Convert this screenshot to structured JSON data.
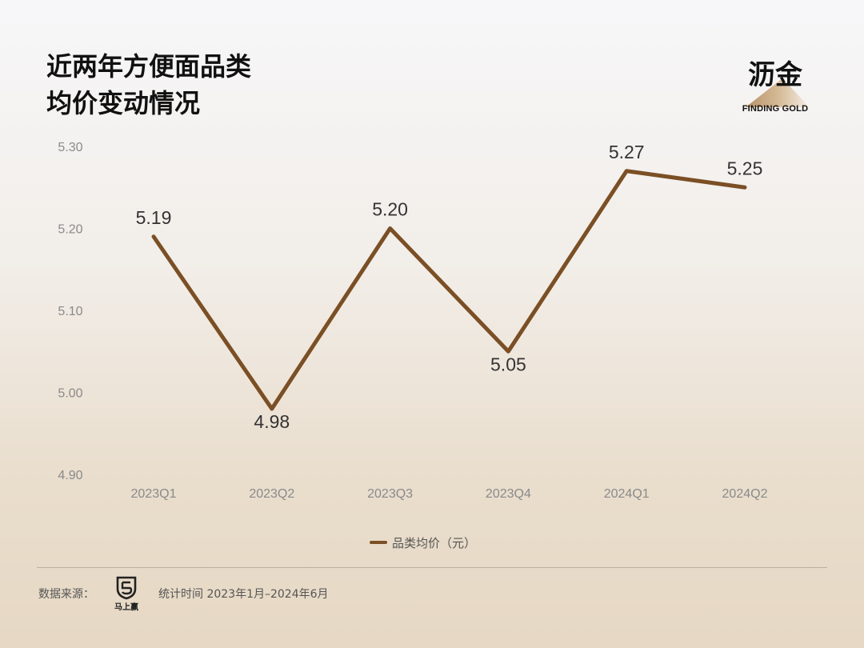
{
  "title": {
    "line1": "近两年方便面品类",
    "line2": "均价变动情况"
  },
  "logo": {
    "name_cn": "沥金",
    "name_en": "FINDING GOLD",
    "icon": "mountain-icon",
    "colors": [
      "#c8a57a",
      "#f3ede5"
    ]
  },
  "source": {
    "label": "数据来源：",
    "logo_text": "马上赢",
    "logo_icon": "shield-icon",
    "period": "统计时间 2023年1月–2024年6月"
  },
  "colors": {
    "line": "#7b4f25"
  },
  "chart_data": {
    "type": "line",
    "categories": [
      "2023Q1",
      "2023Q2",
      "2023Q3",
      "2023Q4",
      "2024Q1",
      "2024Q2"
    ],
    "series": [
      {
        "name": "品类均价（元）",
        "values": [
          5.19,
          4.98,
          5.2,
          5.05,
          5.27,
          5.25
        ]
      }
    ],
    "data_labels": [
      "5.19",
      "4.98",
      "5.20",
      "5.05",
      "5.27",
      "5.25"
    ],
    "y_ticks": [
      "5.30",
      "5.20",
      "5.10",
      "5.00",
      "4.90"
    ],
    "ylim": [
      4.9,
      5.3
    ],
    "grid": false,
    "legend": "bottom-center"
  }
}
